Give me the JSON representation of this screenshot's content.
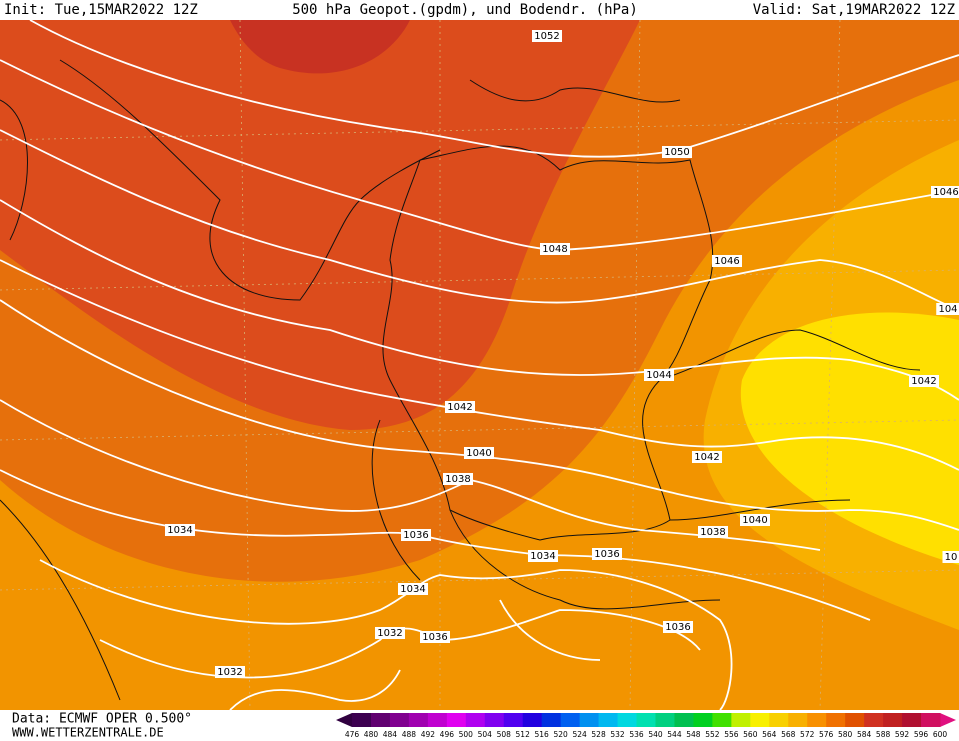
{
  "header": {
    "init": "Init: Tue,15MAR2022 12Z",
    "title": "500 hPa Geopot.(gpdm), und Bodendr. (hPa)",
    "valid": "Valid: Sat,19MAR2022 12Z"
  },
  "isobar_labels": [
    "1052",
    "1050",
    "1048",
    "1046",
    "1046",
    "104",
    "1044",
    "1042",
    "1042",
    "1042",
    "1040",
    "1040",
    "1038",
    "1038",
    "1036",
    "1036",
    "1036",
    "1034",
    "1034",
    "1034",
    "1032",
    "1036",
    "1032",
    "10"
  ],
  "footer": {
    "data": "Data: ECMWF OPER 0.500°",
    "site": "WWW.WETTERZENTRALE.DE"
  },
  "colorbar": {
    "labels": [
      476,
      480,
      484,
      488,
      492,
      496,
      500,
      504,
      508,
      512,
      516,
      520,
      524,
      528,
      532,
      536,
      540,
      544,
      548,
      552,
      556,
      560,
      564,
      568,
      572,
      576,
      580,
      584,
      588,
      592,
      596,
      600
    ],
    "colors": [
      "#3c0050",
      "#600070",
      "#800090",
      "#a000b0",
      "#c000d0",
      "#e000f0",
      "#b000f0",
      "#8000f0",
      "#5000f0",
      "#2000e0",
      "#0030e0",
      "#0060f0",
      "#0090f0",
      "#00b8f0",
      "#00d8e0",
      "#00e0b0",
      "#00d080",
      "#00c050",
      "#00d020",
      "#40e000",
      "#c0f000",
      "#f8f000",
      "#f8d000",
      "#f8b000",
      "#f89000",
      "#f07000",
      "#e05000",
      "#d03020",
      "#c02020",
      "#b01030",
      "#d01060"
    ]
  }
}
